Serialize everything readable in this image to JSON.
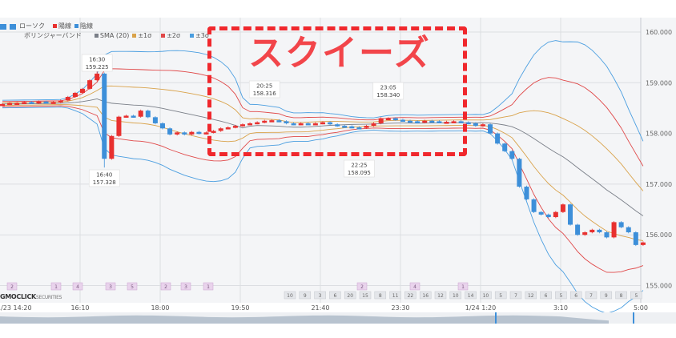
{
  "legend": {
    "icons": [
      "candlestick-icon",
      "bollinger-icon"
    ],
    "candle_label": "ローソク",
    "up_label": "陽線",
    "down_label": "陰線",
    "bb_label": "ボリンジャーバンド",
    "sma_label": "SMA (20)",
    "s1_label": "±1σ",
    "s2_label": "±2σ",
    "s3_label": "±3σ"
  },
  "annotation": {
    "text": "スクイーズ",
    "color": "#f0282d"
  },
  "logo": {
    "main": "GMOCLICK",
    "sub": "SECURITIES"
  },
  "colors": {
    "up": "#e8302f",
    "down": "#3d8fd9",
    "sma": "#7a7f88",
    "s1": "#d9a24a",
    "s2": "#e04848",
    "s3": "#4a9ee0"
  },
  "chart_data": {
    "type": "candlestick",
    "interval_minutes": 10,
    "start_time": "1/23 14:20",
    "x_tick_labels": [
      "1/23 14:20",
      "16:10",
      "18:00",
      "19:50",
      "21:40",
      "23:30",
      "1/24 1:20",
      "3:10",
      "5:00"
    ],
    "y_tick_labels": [
      "160.000",
      "159.000",
      "158.000",
      "157.000",
      "156.000",
      "155.000"
    ],
    "ylim": [
      154.95,
      160.3
    ],
    "grid": true,
    "closes": [
      158.58,
      158.6,
      158.6,
      158.62,
      158.6,
      158.63,
      158.62,
      158.62,
      158.65,
      158.72,
      158.8,
      158.88,
      159.05,
      159.18,
      157.5,
      157.95,
      158.33,
      158.35,
      158.33,
      158.45,
      158.32,
      158.2,
      158.1,
      157.98,
      158.02,
      157.98,
      158.03,
      158.0,
      158.02,
      158.05,
      158.1,
      158.12,
      158.15,
      158.18,
      158.2,
      158.22,
      158.25,
      158.26,
      158.24,
      158.2,
      158.18,
      158.2,
      158.19,
      158.2,
      158.22,
      158.18,
      158.15,
      158.14,
      158.12,
      158.11,
      158.15,
      158.2,
      158.3,
      158.3,
      158.27,
      158.25,
      158.24,
      158.22,
      158.25,
      158.24,
      158.22,
      158.23,
      158.24,
      158.22,
      158.2,
      158.15,
      158.18,
      158.0,
      157.8,
      157.65,
      157.5,
      156.95,
      156.7,
      156.45,
      156.4,
      156.35,
      156.45,
      156.6,
      156.2,
      156.0,
      156.05,
      156.1,
      156.05,
      155.95,
      156.25,
      156.15,
      156.05,
      155.8,
      155.85
    ],
    "open_first": 158.57,
    "annotations": [
      {
        "time": "16:30",
        "price": "159.225",
        "idx": 13,
        "pos": "above"
      },
      {
        "time": "16:40",
        "price": "157.328",
        "idx": 14,
        "pos": "below"
      },
      {
        "time": "20:25",
        "price": "158.316",
        "idx": 36,
        "pos": "above"
      },
      {
        "time": "22:25",
        "price": "158.095",
        "idx": 49,
        "pos": "below"
      },
      {
        "time": "23:05",
        "price": "158.340",
        "idx": 53,
        "pos": "above"
      }
    ],
    "event_markers_top": [
      "2",
      "1",
      "4",
      "3",
      "5",
      "2",
      "3",
      "1",
      "2",
      "4",
      "1"
    ],
    "event_markers_bottom": [
      "10",
      "9",
      "3",
      "6",
      "20",
      "15",
      "8",
      "11",
      "22",
      "16",
      "12",
      "10",
      "14",
      "10",
      "5",
      "7",
      "12",
      "6",
      "5",
      "6",
      "7",
      "9",
      "8",
      "5"
    ],
    "indicator": "Bollinger Bands SMA(20) ±1σ ±2σ ±3σ"
  }
}
